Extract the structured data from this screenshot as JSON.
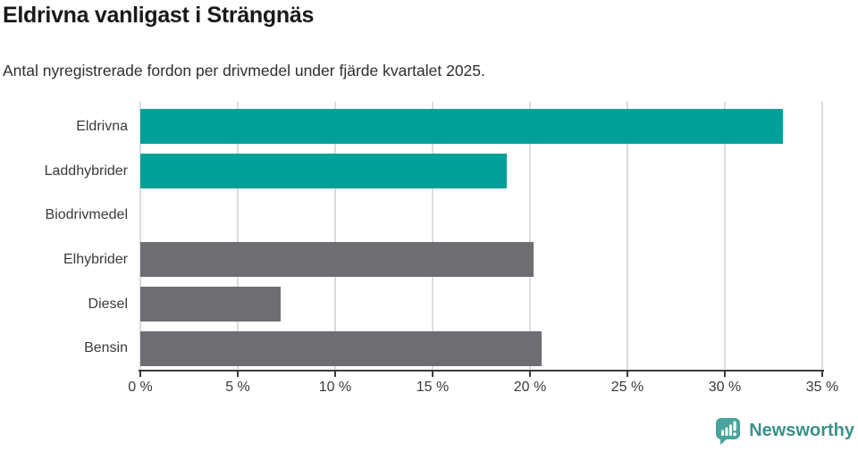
{
  "header": {
    "title": "Eldrivna vanligast i Strängnäs",
    "subtitle": "Antal nyregistrerade fordon per drivmedel under fjärde kvartalet 2025."
  },
  "chart_data": {
    "type": "bar",
    "orientation": "horizontal",
    "title": "Eldrivna vanligast i Strängnäs",
    "subtitle": "Antal nyregistrerade fordon per drivmedel under fjärde kvartalet 2025.",
    "categories": [
      "Eldrivna",
      "Laddhybrider",
      "Biodrivmedel",
      "Elhybrider",
      "Diesel",
      "Bensin"
    ],
    "values": [
      33.0,
      18.8,
      0,
      20.2,
      7.2,
      20.6
    ],
    "unit": "%",
    "bar_colors": [
      "#00A099",
      "#00A099",
      "#00A099",
      "#6D6D74",
      "#6D6D74",
      "#6D6D74"
    ],
    "xlim": [
      0,
      35
    ],
    "xticks": [
      0,
      5,
      10,
      15,
      20,
      25,
      30,
      35
    ],
    "xtick_labels": [
      "0 %",
      "5 %",
      "10 %",
      "15 %",
      "20 %",
      "25 %",
      "30 %",
      "35 %"
    ],
    "grid": true,
    "legend": "none"
  },
  "footer": {
    "brand_label": "Newsworthy",
    "logo_icon": "speech-bubble-bar-chart-icon"
  },
  "colors": {
    "bar_teal": "#00A099",
    "bar_gray": "#6D6D74",
    "gridline": "#DCDCDC",
    "axis": "#3B3B3B",
    "title_text": "#191919",
    "body_text": "#2E2E2E",
    "brand_teal": "#399189",
    "brand_icon_teal": "#4AA49B"
  }
}
